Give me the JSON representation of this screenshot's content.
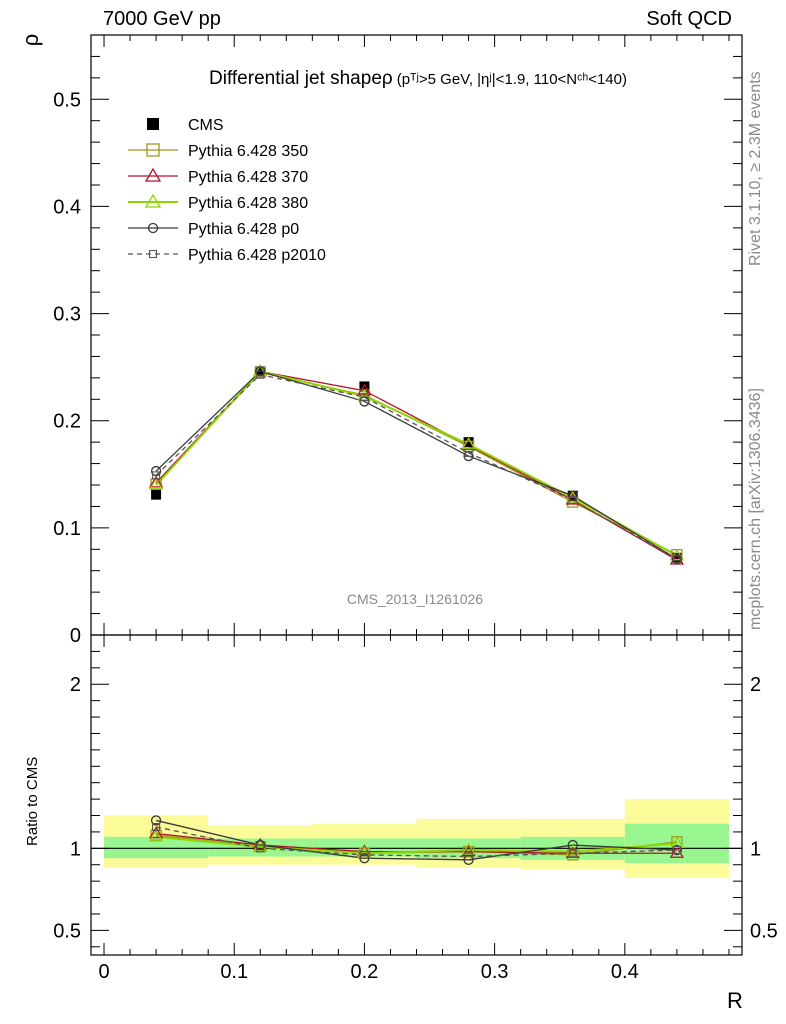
{
  "header": {
    "left": "7000 GeV pp",
    "right": "Soft QCD"
  },
  "side_labels": {
    "rivet": "Rivet 3.1.10, ≥ 2.3M events",
    "mcplots": "mcplots.cern.ch [arXiv:1306.3436]"
  },
  "plot": {
    "title": "Differential jet shapeρ",
    "title_cuts": "(pᵀʲ>5 GeV, |ηʲ|<1.9, 110<Nᶜʰ<140)",
    "watermark": "CMS_2013_I1261026",
    "ylabel_top": "ρ",
    "ylabel_ratio": "Ratio to CMS",
    "xlabel": "R"
  },
  "colors": {
    "cms": "#000000",
    "p350": "#9a9a1a",
    "p370": "#b3122a",
    "p380": "#8fd400",
    "p0": "#3a3a3a",
    "p2010": "#555555",
    "band_inner": "#99f58f",
    "band_outer": "#fbfb9a"
  },
  "chart_data": [
    {
      "type": "line",
      "title": "Differential jet shapeρ (pTj>5 GeV, |ηj|<1.9, 110<Nch<140)",
      "xlabel": "R",
      "ylabel": "ρ",
      "xlim": [
        -0.01,
        0.49
      ],
      "ylim": [
        0,
        0.56
      ],
      "yticks": [
        0.1,
        0.2,
        0.3,
        0.4,
        0.5
      ],
      "xticks": [
        0,
        0.1,
        0.2,
        0.3,
        0.4
      ],
      "legend_position": "top-left",
      "x": [
        0.04,
        0.12,
        0.2,
        0.28,
        0.36,
        0.44
      ],
      "series": [
        {
          "name": "CMS",
          "key": "cms",
          "marker": "filled-square",
          "line": "none",
          "values": [
            0.131,
            0.246,
            0.232,
            0.18,
            0.13,
            0.072
          ],
          "errors": [
            0.003,
            0.004,
            0.004,
            0.003,
            0.003,
            0.002
          ]
        },
        {
          "name": "Pythia 6.428 350",
          "key": "p350",
          "marker": "open-square",
          "line": "solid",
          "values": [
            0.141,
            0.245,
            0.224,
            0.176,
            0.124,
            0.075
          ]
        },
        {
          "name": "Pythia 6.428 370",
          "key": "p370",
          "marker": "open-triangle",
          "line": "solid",
          "values": [
            0.142,
            0.246,
            0.228,
            0.177,
            0.126,
            0.07
          ]
        },
        {
          "name": "Pythia 6.428 380",
          "key": "p380",
          "marker": "open-triangle",
          "line": "solid",
          "values": [
            0.14,
            0.246,
            0.223,
            0.178,
            0.128,
            0.074
          ]
        },
        {
          "name": "Pythia 6.428 p0",
          "key": "p0",
          "marker": "open-circle",
          "line": "solid",
          "values": [
            0.153,
            0.246,
            0.218,
            0.167,
            0.13,
            0.071
          ]
        },
        {
          "name": "Pythia 6.428 p2010",
          "key": "p2010",
          "marker": "open-square-small",
          "line": "dashed",
          "values": [
            0.149,
            0.243,
            0.222,
            0.17,
            0.126,
            0.071
          ]
        }
      ]
    },
    {
      "type": "line",
      "ylabel": "Ratio to CMS",
      "xlabel": "R",
      "xlim": [
        -0.01,
        0.49
      ],
      "ylim": [
        0.35,
        2.3
      ],
      "yticks": [
        0.5,
        1,
        2
      ],
      "x": [
        0.04,
        0.12,
        0.2,
        0.28,
        0.36,
        0.44
      ],
      "bands": {
        "x_edges": [
          0.0,
          0.08,
          0.16,
          0.24,
          0.32,
          0.4,
          0.48
        ],
        "inner": [
          [
            0.94,
            1.07
          ],
          [
            0.95,
            1.06
          ],
          [
            0.95,
            1.06
          ],
          [
            0.94,
            1.06
          ],
          [
            0.93,
            1.07
          ],
          [
            0.91,
            1.15
          ]
        ],
        "outer": [
          [
            0.88,
            1.2
          ],
          [
            0.9,
            1.14
          ],
          [
            0.9,
            1.15
          ],
          [
            0.88,
            1.18
          ],
          [
            0.87,
            1.18
          ],
          [
            0.82,
            1.3
          ]
        ]
      },
      "series": [
        {
          "name": "Pythia 6.428 350",
          "key": "p350",
          "marker": "open-square",
          "line": "solid",
          "values": [
            1.08,
            1.01,
            0.97,
            0.98,
            0.96,
            1.04
          ]
        },
        {
          "name": "Pythia 6.428 370",
          "key": "p370",
          "marker": "open-triangle",
          "line": "solid",
          "values": [
            1.09,
            1.02,
            0.98,
            0.98,
            0.97,
            0.97
          ]
        },
        {
          "name": "Pythia 6.428 380",
          "key": "p380",
          "marker": "open-triangle",
          "line": "solid",
          "values": [
            1.07,
            1.01,
            0.97,
            0.99,
            0.98,
            1.03
          ]
        },
        {
          "name": "Pythia 6.428 p0",
          "key": "p0",
          "marker": "open-circle",
          "line": "solid",
          "values": [
            1.17,
            1.02,
            0.94,
            0.93,
            1.02,
            0.99
          ]
        },
        {
          "name": "Pythia 6.428 p2010",
          "key": "p2010",
          "marker": "open-square-small",
          "line": "dashed",
          "values": [
            1.13,
            1.0,
            0.96,
            0.95,
            0.97,
            0.99
          ]
        }
      ]
    }
  ]
}
